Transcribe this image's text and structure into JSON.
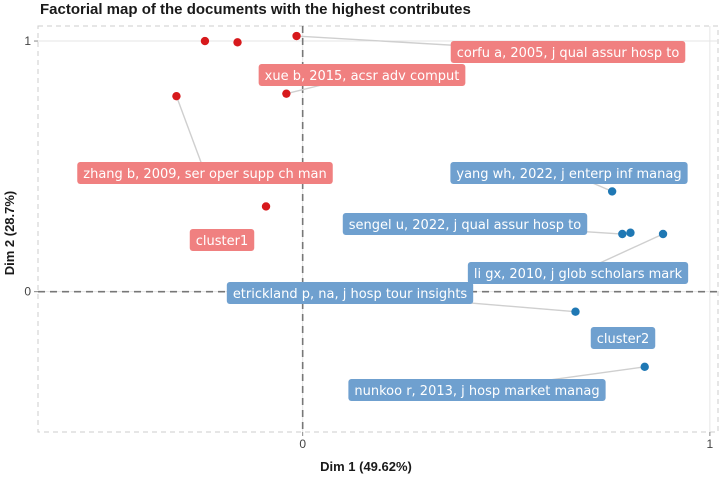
{
  "chart_data": {
    "type": "scatter",
    "title": "Factorial map of the documents with the highest contributes",
    "xlabel": "Dim 1 (49.62%)",
    "ylabel": "Dim 2 (28.7%)",
    "xlim": [
      -0.65,
      1.02
    ],
    "ylim": [
      -0.56,
      1.06
    ],
    "x_ticks": [
      {
        "value": 0,
        "label": "0"
      },
      {
        "value": 1,
        "label": "1"
      }
    ],
    "y_ticks": [
      {
        "value": 0,
        "label": "0"
      },
      {
        "value": 1,
        "label": "1"
      }
    ],
    "reference_lines": {
      "x": 0,
      "y": 0
    },
    "colors": {
      "cluster1": "#d7191c",
      "cluster1_label": "#f08080",
      "cluster2": "#1f78b4",
      "cluster2_label": "#6fa0cf"
    },
    "series": [
      {
        "name": "cluster1",
        "color_key": "cluster1",
        "points": [
          {
            "x": -0.24,
            "y": 1.0,
            "label": ""
          },
          {
            "x": -0.16,
            "y": 0.995,
            "label": ""
          },
          {
            "x": -0.015,
            "y": 1.02,
            "label": "corfu a, 2005, j qual assur hosp to"
          },
          {
            "x": -0.04,
            "y": 0.79,
            "label": "xue b, 2015, acsr adv comput"
          },
          {
            "x": -0.31,
            "y": 0.78,
            "label": "zhang b, 2009, ser oper supp ch man"
          },
          {
            "x": -0.09,
            "y": 0.34,
            "label": ""
          }
        ]
      },
      {
        "name": "cluster2",
        "color_key": "cluster2",
        "points": [
          {
            "x": 0.76,
            "y": 0.4,
            "label": "yang wh, 2022, j enterp inf manag"
          },
          {
            "x": 0.785,
            "y": 0.23,
            "label": "sengel u, 2022, j qual assur hosp to"
          },
          {
            "x": 0.805,
            "y": 0.235,
            "label": ""
          },
          {
            "x": 0.885,
            "y": 0.23,
            "label": "li gx, 2010, j glob scholars mark"
          },
          {
            "x": 0.67,
            "y": -0.08,
            "label": "etrickland p, na, j hosp tour insights"
          },
          {
            "x": 0.84,
            "y": -0.3,
            "label": "nunkoo r, 2013, j hosp market manag"
          }
        ]
      }
    ],
    "cluster_labels": [
      {
        "text": "cluster1",
        "x": -0.19,
        "y": 0.22,
        "color_key": "cluster1"
      },
      {
        "text": "cluster2",
        "x": 0.78,
        "y": -0.19,
        "color_key": "cluster2"
      }
    ]
  }
}
